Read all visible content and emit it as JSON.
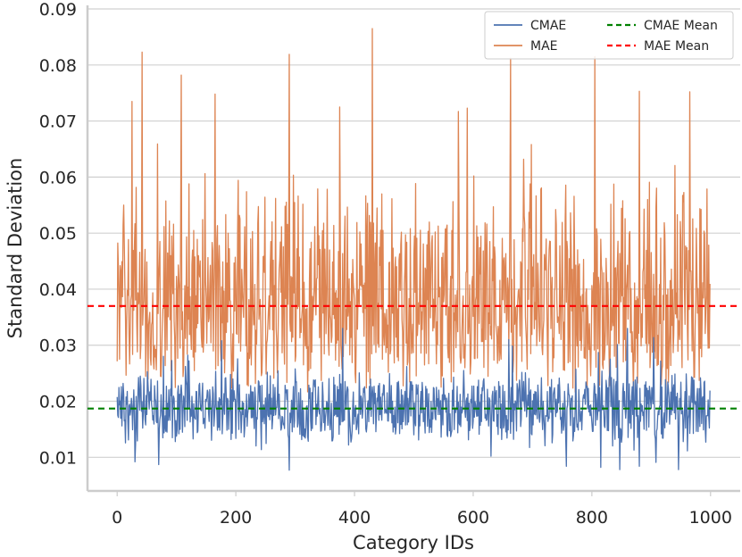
{
  "chart_data": {
    "type": "line",
    "title": "",
    "xlabel": "Category IDs",
    "ylabel": "Standard Deviation",
    "xlim": [
      -50,
      1050
    ],
    "ylim": [
      0.004,
      0.09
    ],
    "xticks": [
      0,
      200,
      400,
      600,
      800,
      1000
    ],
    "yticks": [
      0.01,
      0.02,
      0.03,
      0.04,
      0.05,
      0.06,
      0.07,
      0.08,
      0.09
    ],
    "x_tick_labels": [
      "0",
      "200",
      "400",
      "600",
      "800",
      "1000"
    ],
    "y_tick_labels": [
      "0.01",
      "0.02",
      "0.03",
      "0.04",
      "0.05",
      "0.06",
      "0.07",
      "0.08",
      "0.09"
    ],
    "grid": true,
    "legend_position": "top-right",
    "series": [
      {
        "name": "CMAE",
        "color": "#4c72b0",
        "note": "1000 noisy points, x = 0..999",
        "mean": 0.0187,
        "range": [
          0.0078,
          0.033
        ],
        "peaks": [
          [
            30,
            0.0092
          ],
          [
            70,
            0.0087
          ],
          [
            290,
            0.0077
          ],
          [
            380,
            0.033
          ],
          [
            660,
            0.031
          ],
          [
            815,
            0.0082
          ],
          [
            860,
            0.033
          ],
          [
            880,
            0.0084
          ]
        ]
      },
      {
        "name": "MAE",
        "color": "#dd8452",
        "note": "1000 noisy points, x = 0..999",
        "mean": 0.037,
        "range": [
          0.012,
          0.0865
        ],
        "peaks": [
          [
            25,
            0.0735
          ],
          [
            42,
            0.0823
          ],
          [
            68,
            0.0659
          ],
          [
            108,
            0.0782
          ],
          [
            165,
            0.0748
          ],
          [
            290,
            0.0819
          ],
          [
            375,
            0.0725
          ],
          [
            430,
            0.0865
          ],
          [
            575,
            0.0717
          ],
          [
            590,
            0.0723
          ],
          [
            663,
            0.0812
          ],
          [
            698,
            0.0658
          ],
          [
            805,
            0.0815
          ],
          [
            880,
            0.0753
          ],
          [
            965,
            0.0752
          ]
        ]
      },
      {
        "name": "CMAE Mean",
        "color": "#008000",
        "style": "dashed",
        "value": 0.0187
      },
      {
        "name": "MAE Mean",
        "color": "#ff0000",
        "style": "dashed",
        "value": 0.037
      }
    ]
  }
}
